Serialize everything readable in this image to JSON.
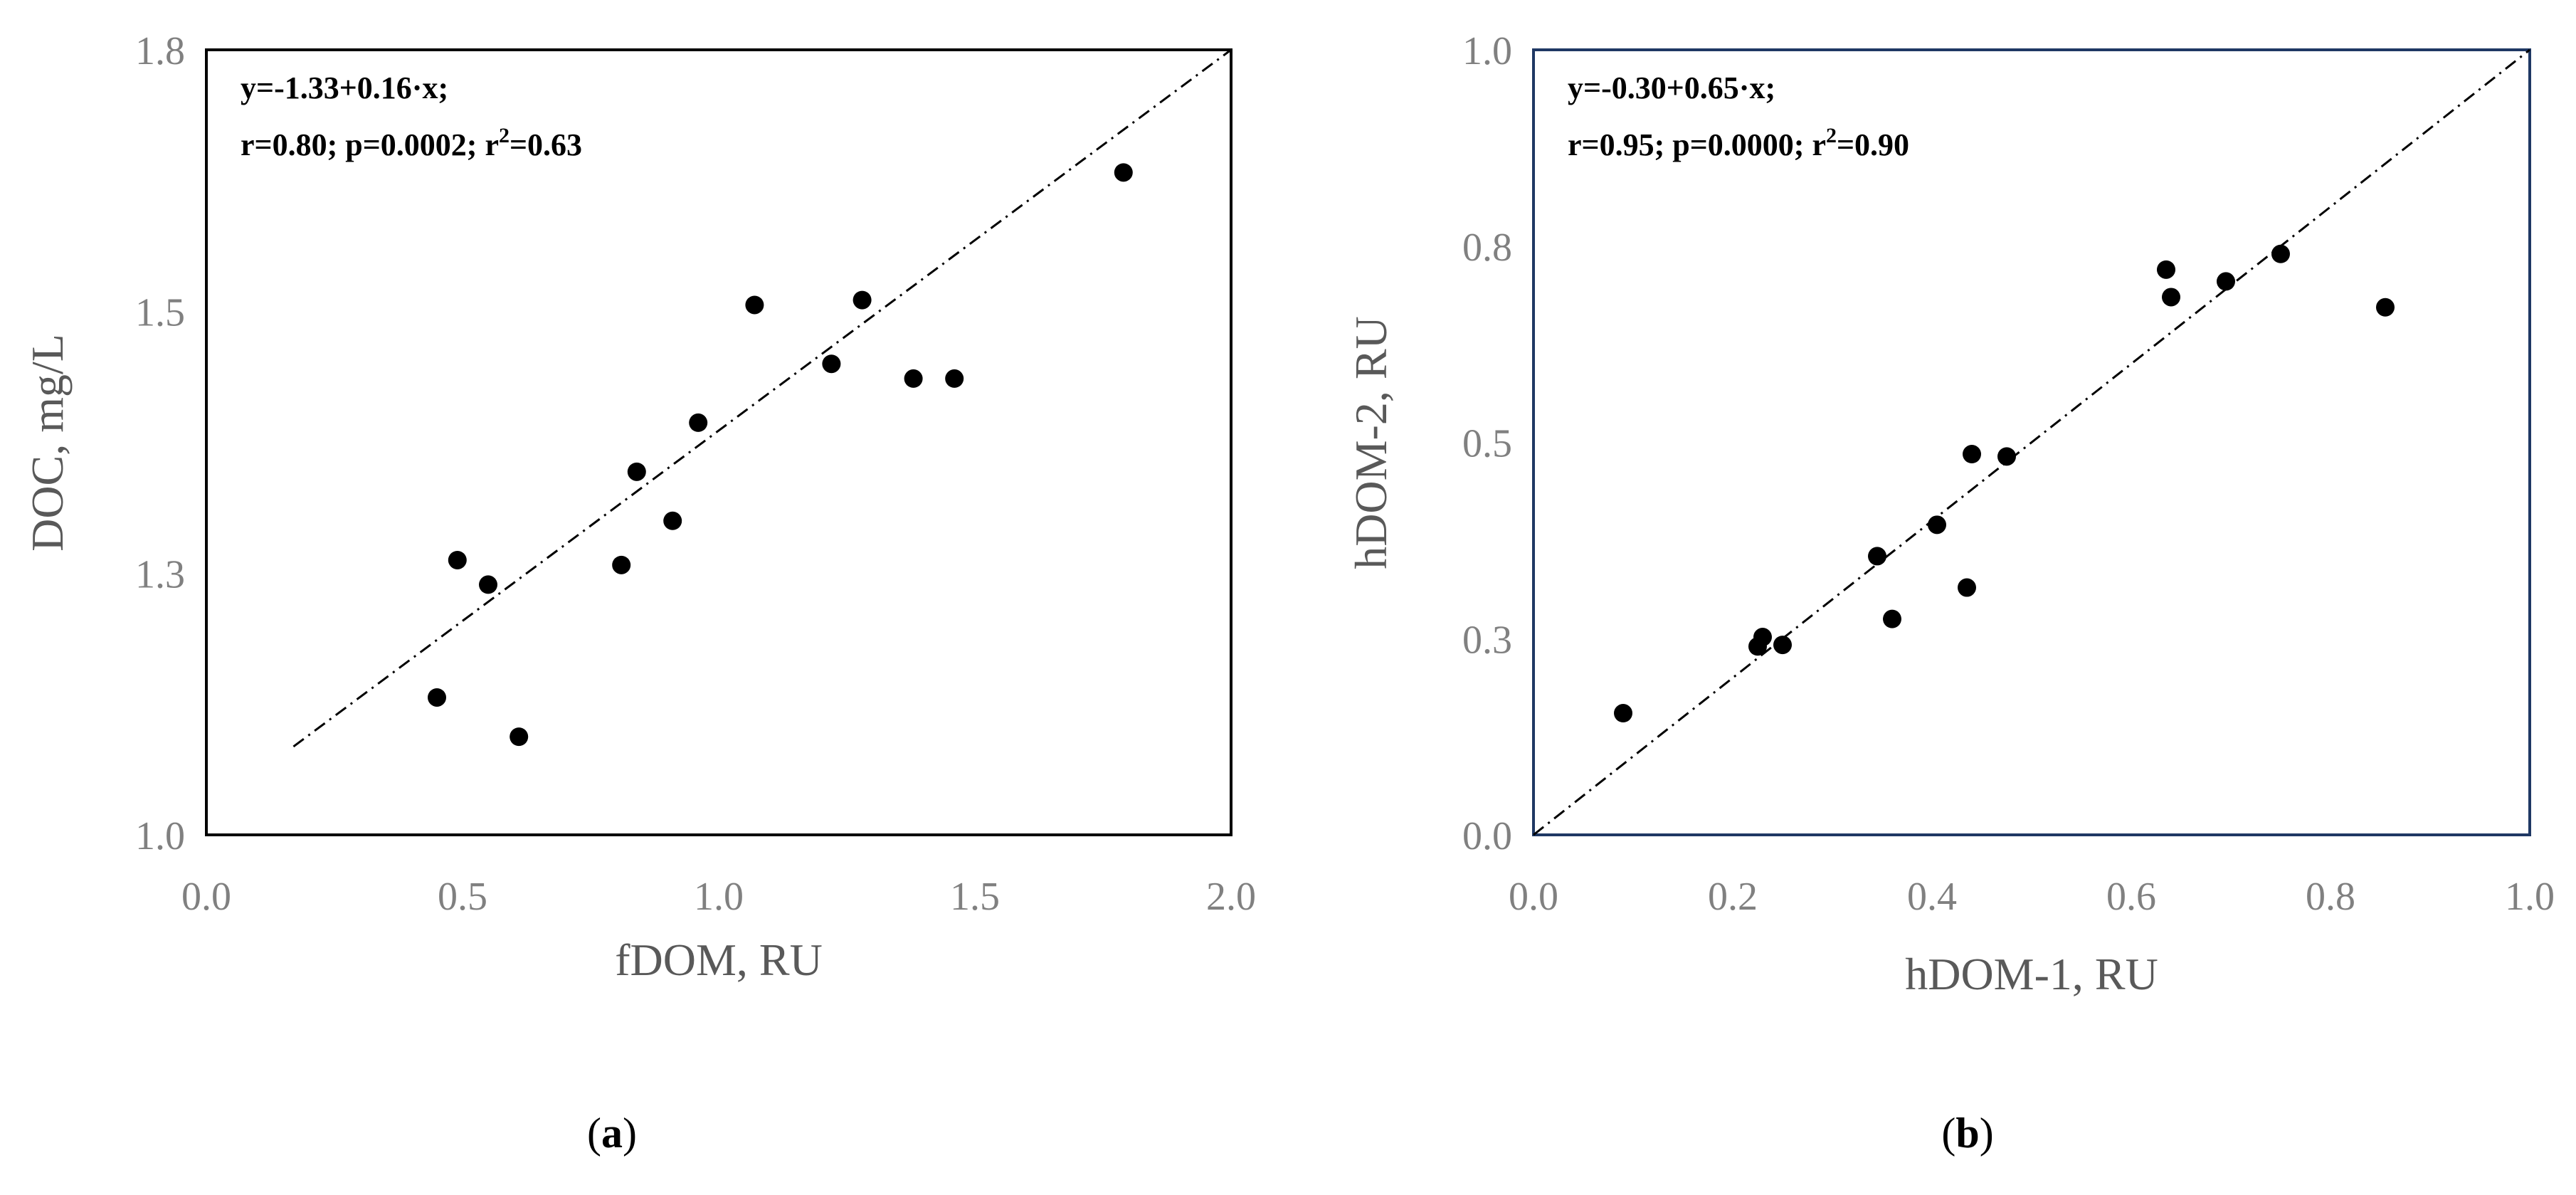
{
  "chart_data": [
    {
      "type": "scatter",
      "panel_label": "a",
      "xlabel": "fDOM, RU",
      "ylabel": "DOC, mg/L",
      "xlim": [
        0.0,
        2.0
      ],
      "ylim": [
        1.0,
        1.8
      ],
      "x_ticks": [
        "0.0",
        "0.5",
        "1.0",
        "1.5",
        "2.0"
      ],
      "y_ticks": [
        "1.0",
        "1.3",
        "1.5",
        "1.8"
      ],
      "grid": false,
      "frame_color": "#000000",
      "equation_line1": "y=-1.33+0.16·x;",
      "equation_line2_prefix": "r=0.80; p=0.0002; r",
      "equation_line2_suffix": "=0.63",
      "equation_sup": "2",
      "points": [
        {
          "x": 0.45,
          "y": 1.14
        },
        {
          "x": 0.49,
          "y": 1.28
        },
        {
          "x": 0.55,
          "y": 1.255
        },
        {
          "x": 0.61,
          "y": 1.1
        },
        {
          "x": 0.81,
          "y": 1.275
        },
        {
          "x": 0.84,
          "y": 1.37
        },
        {
          "x": 0.91,
          "y": 1.32
        },
        {
          "x": 0.96,
          "y": 1.42
        },
        {
          "x": 1.07,
          "y": 1.54
        },
        {
          "x": 1.22,
          "y": 1.48
        },
        {
          "x": 1.28,
          "y": 1.545
        },
        {
          "x": 1.38,
          "y": 1.465
        },
        {
          "x": 1.46,
          "y": 1.465
        },
        {
          "x": 1.79,
          "y": 1.675
        }
      ],
      "fit_line": {
        "x": [
          0.17,
          2.0
        ],
        "y": [
          1.09,
          1.8
        ]
      }
    },
    {
      "type": "scatter",
      "panel_label": "b",
      "xlabel": "hDOM-1, RU",
      "ylabel": "hDOM-2, RU",
      "xlim": [
        0.0,
        1.0
      ],
      "ylim": [
        0.0,
        1.0
      ],
      "x_ticks": [
        "0.0",
        "0.2",
        "0.4",
        "0.6",
        "0.8",
        "1.0"
      ],
      "y_ticks": [
        "0.0",
        "0.3",
        "0.5",
        "0.8",
        "1.0"
      ],
      "grid": false,
      "frame_color": "#1f3864",
      "equation_line1": "y=-0.30+0.65·x;",
      "equation_line2_prefix": "r=0.95; p=0.0000; r",
      "equation_line2_suffix": "=0.90",
      "equation_sup": "2",
      "points": [
        {
          "x": 0.09,
          "y": 0.155
        },
        {
          "x": 0.225,
          "y": 0.24
        },
        {
          "x": 0.23,
          "y": 0.252
        },
        {
          "x": 0.25,
          "y": 0.242
        },
        {
          "x": 0.345,
          "y": 0.355
        },
        {
          "x": 0.36,
          "y": 0.275
        },
        {
          "x": 0.405,
          "y": 0.395
        },
        {
          "x": 0.435,
          "y": 0.315
        },
        {
          "x": 0.44,
          "y": 0.485
        },
        {
          "x": 0.475,
          "y": 0.482
        },
        {
          "x": 0.635,
          "y": 0.72
        },
        {
          "x": 0.64,
          "y": 0.685
        },
        {
          "x": 0.695,
          "y": 0.705
        },
        {
          "x": 0.75,
          "y": 0.74
        },
        {
          "x": 0.855,
          "y": 0.672
        }
      ],
      "fit_line": {
        "x": [
          0.0,
          1.0
        ],
        "y": [
          0.0,
          1.0
        ]
      }
    }
  ]
}
